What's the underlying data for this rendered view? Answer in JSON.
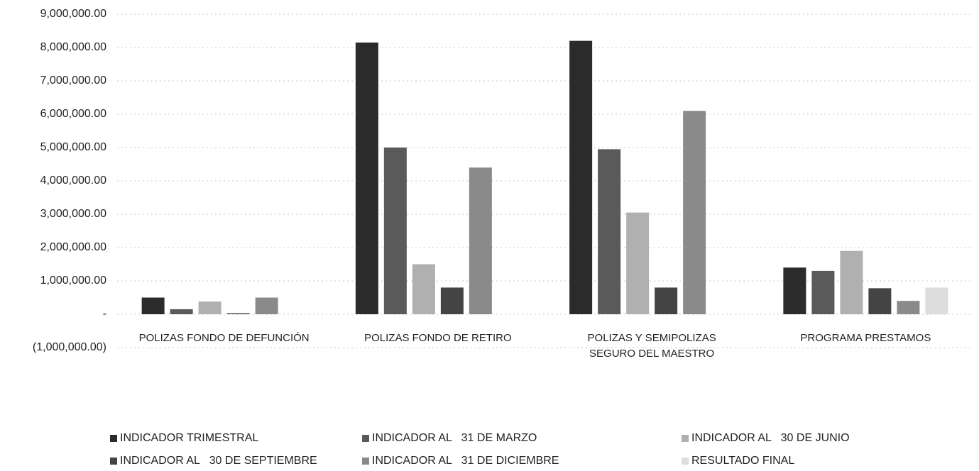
{
  "chart_data": {
    "type": "bar",
    "categories": [
      "POLIZAS FONDO DE DEFUNCIÓN",
      "POLIZAS FONDO DE RETIRO",
      "POLIZAS Y SEMIPOLIZAS SEGURO DEL MAESTRO",
      "PROGRAMA PRESTAMOS"
    ],
    "series": [
      {
        "name": "INDICADOR TRIMESTRAL",
        "color": "#2b2b2b",
        "values": [
          500000,
          8150000,
          8200000,
          1400000
        ]
      },
      {
        "name": "INDICADOR AL   31 DE MARZO",
        "color": "#5a5a5a",
        "values": [
          150000,
          5000000,
          4950000,
          1300000
        ]
      },
      {
        "name": "INDICADOR AL   30 DE JUNIO",
        "color": "#b0b0b0",
        "values": [
          380000,
          1500000,
          3050000,
          1900000
        ]
      },
      {
        "name": "INDICADOR AL   30 DE SEPTIEMBRE",
        "color": "#444444",
        "values": [
          30000,
          800000,
          800000,
          780000
        ]
      },
      {
        "name": "INDICADOR AL   31 DE DICIEMBRE",
        "color": "#8a8a8a",
        "values": [
          500000,
          4400000,
          6100000,
          400000
        ]
      },
      {
        "name": "RESULTADO FINAL",
        "color": "#dddddd",
        "values": [
          null,
          null,
          null,
          800000
        ]
      }
    ],
    "ylim": [
      -1000000,
      9000000
    ],
    "yticks": [
      {
        "value": -1000000,
        "label": "(1,000,000.00)"
      },
      {
        "value": 0,
        "label": "-"
      },
      {
        "value": 1000000,
        "label": "1,000,000.00"
      },
      {
        "value": 2000000,
        "label": "2,000,000.00"
      },
      {
        "value": 3000000,
        "label": "3,000,000.00"
      },
      {
        "value": 4000000,
        "label": "4,000,000.00"
      },
      {
        "value": 5000000,
        "label": "5,000,000.00"
      },
      {
        "value": 6000000,
        "label": "6,000,000.00"
      },
      {
        "value": 7000000,
        "label": "7,000,000.00"
      },
      {
        "value": 8000000,
        "label": "8,000,000.00"
      },
      {
        "value": 9000000,
        "label": "9,000,000.00"
      }
    ],
    "grid": true,
    "legend": "bottom"
  }
}
